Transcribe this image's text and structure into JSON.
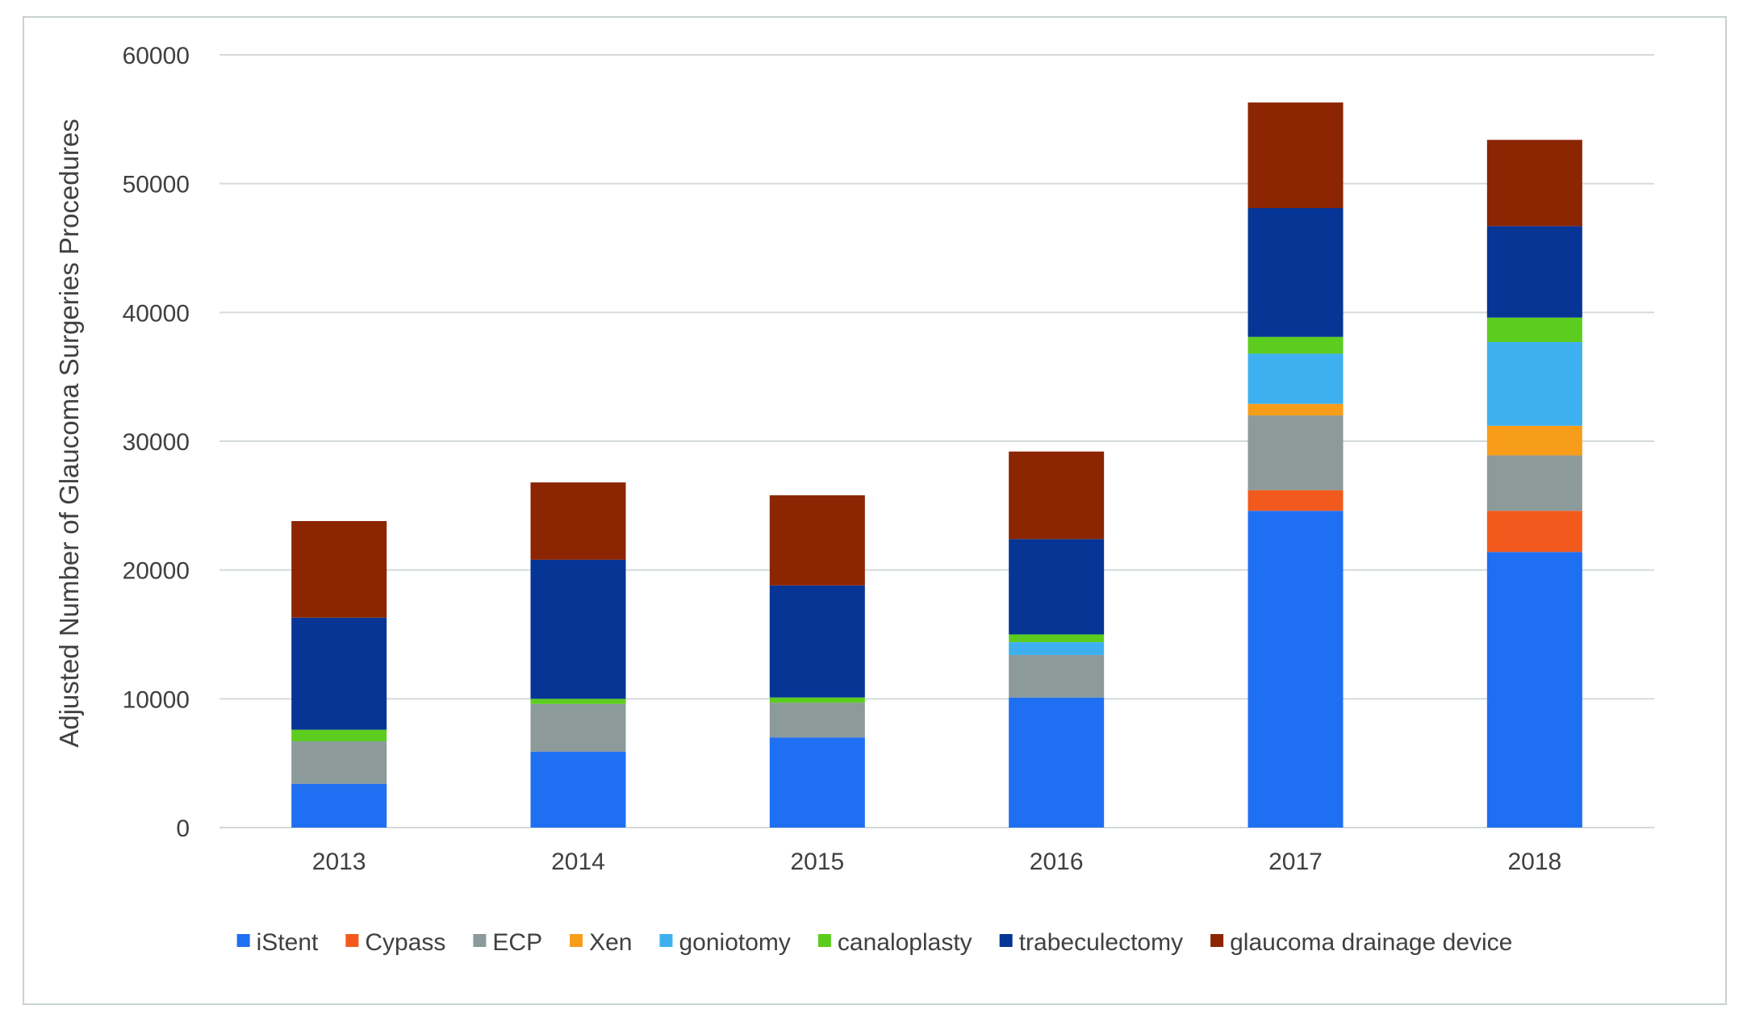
{
  "chart_data": {
    "type": "bar",
    "stacked": true,
    "title": "",
    "xlabel": "",
    "ylabel": "Adjusted Number of Glaucoma Surgeries Procedures",
    "ylim": [
      0,
      60000
    ],
    "yticks": [
      0,
      10000,
      20000,
      30000,
      40000,
      50000,
      60000
    ],
    "grid": true,
    "legend_position": "bottom",
    "categories": [
      "2013",
      "2014",
      "2015",
      "2016",
      "2017",
      "2018"
    ],
    "series": [
      {
        "name": "iStent",
        "color": "#1f6ff2",
        "values": [
          3400,
          5900,
          7000,
          10100,
          24600,
          21400
        ]
      },
      {
        "name": "Cypass",
        "color": "#f25a1d",
        "values": [
          0,
          0,
          0,
          0,
          1600,
          3200
        ]
      },
      {
        "name": "ECP",
        "color": "#8c9a9a",
        "values": [
          3300,
          3700,
          2700,
          3300,
          5800,
          4300
        ]
      },
      {
        "name": "Xen",
        "color": "#f79d1a",
        "values": [
          0,
          0,
          0,
          0,
          900,
          2300
        ]
      },
      {
        "name": "goniotomy",
        "color": "#3fb0ef",
        "values": [
          0,
          0,
          0,
          1000,
          3900,
          6500
        ]
      },
      {
        "name": "canaloplasty",
        "color": "#5ccd1f",
        "values": [
          900,
          400,
          400,
          600,
          1300,
          1900
        ]
      },
      {
        "name": "trabeculectomy",
        "color": "#063596",
        "values": [
          8700,
          10800,
          8700,
          7400,
          10000,
          7100
        ]
      },
      {
        "name": "glaucoma drainage device",
        "color": "#8b2502",
        "values": [
          7500,
          6000,
          7000,
          6800,
          8200,
          6700
        ]
      }
    ]
  }
}
